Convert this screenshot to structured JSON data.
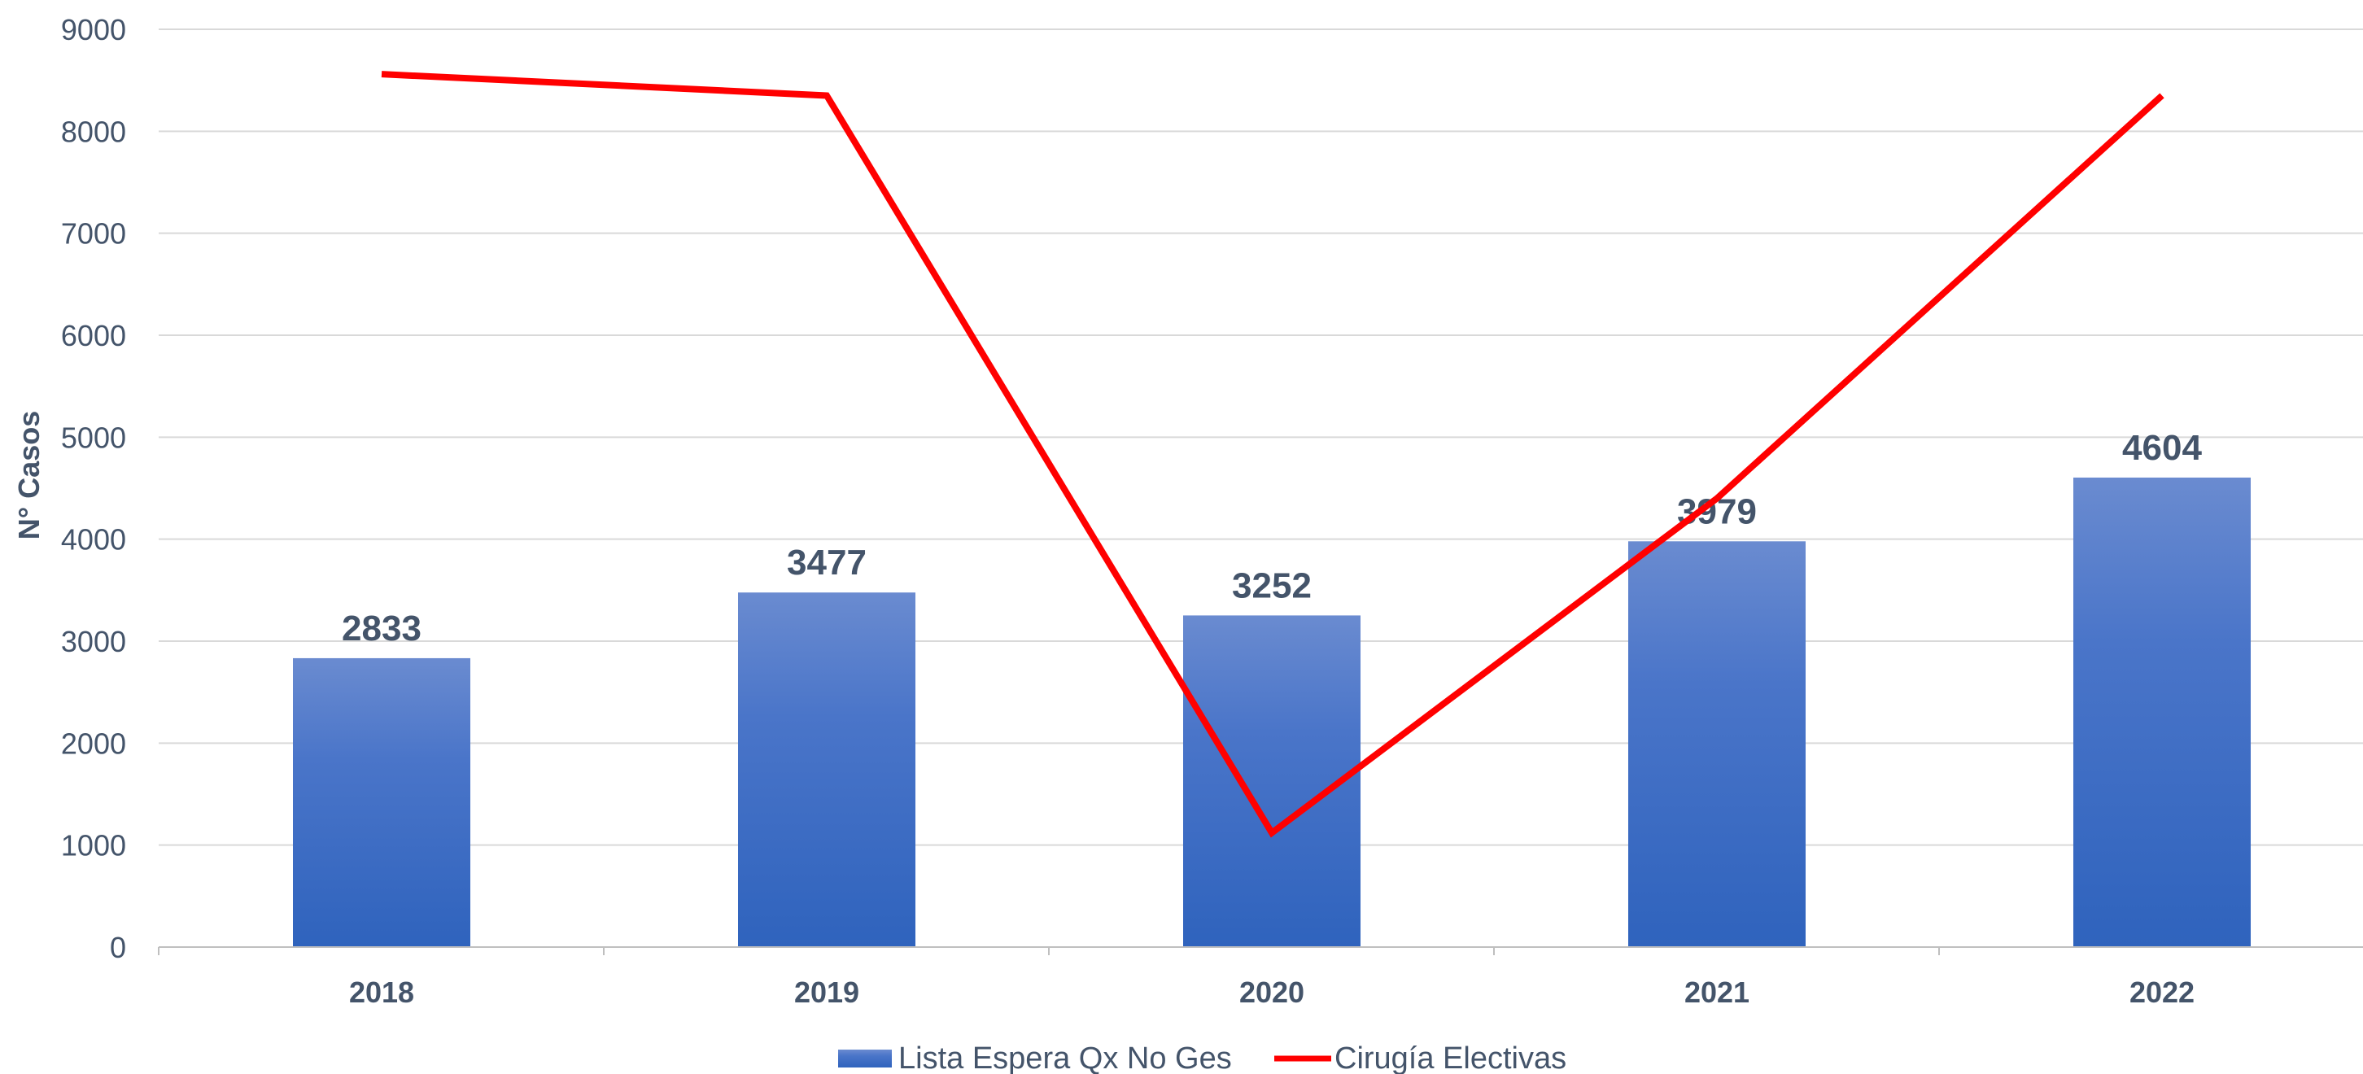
{
  "chart_data": {
    "type": "bar",
    "categories": [
      "2018",
      "2019",
      "2020",
      "2021",
      "2022"
    ],
    "series": [
      {
        "name": "Lista Espera Qx No Ges",
        "type": "bar",
        "values": [
          2833,
          3477,
          3252,
          3979,
          4604
        ],
        "color": "#4472c4"
      },
      {
        "name": "Cirugía Electivas",
        "type": "line",
        "values": [
          8560,
          8350,
          1120,
          4400,
          8350
        ],
        "color": "#ff0000"
      }
    ],
    "data_labels": [
      "2833",
      "3477",
      "3252",
      "3979",
      "4604"
    ],
    "ylabel": "N° Casos",
    "ylim": [
      0,
      9000
    ],
    "yticks": [
      "0",
      "1000",
      "2000",
      "3000",
      "4000",
      "5000",
      "6000",
      "7000",
      "8000",
      "9000"
    ],
    "grid": true,
    "legend_position": "bottom"
  }
}
